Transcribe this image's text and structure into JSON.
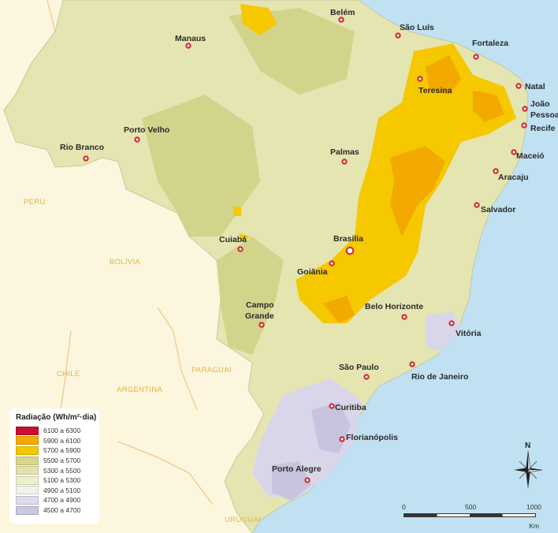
{
  "cities": [
    {
      "name": "Belém"
    },
    {
      "name": "São Luís"
    },
    {
      "name": "Manaus"
    },
    {
      "name": "Fortaleza"
    },
    {
      "name": "Teresina"
    },
    {
      "name": "Natal"
    },
    {
      "name": "João"
    },
    {
      "name": "Pessoa"
    },
    {
      "name": "Recife"
    },
    {
      "name": "Porto Velho"
    },
    {
      "name": "Rio Branco"
    },
    {
      "name": "Palmas"
    },
    {
      "name": "Maceió"
    },
    {
      "name": "Aracaju"
    },
    {
      "name": "Salvador"
    },
    {
      "name": "Cuiabá"
    },
    {
      "name": "Brasília"
    },
    {
      "name": "Goiânia"
    },
    {
      "name": "Campo"
    },
    {
      "name": "Grande"
    },
    {
      "name": "Belo Horizonte"
    },
    {
      "name": "Vitória"
    },
    {
      "name": "São Paulo"
    },
    {
      "name": "Rio de Janeiro"
    },
    {
      "name": "Curitiba"
    },
    {
      "name": "Florianópolis"
    },
    {
      "name": "Porto Alegre"
    }
  ],
  "countries": [
    "PERU",
    "BOLÍVIA",
    "CHILE",
    "PARAGUAI",
    "ARGENTINA",
    "URUGUAI"
  ],
  "legend": {
    "title": "Radiação (Wh/m²·dia)",
    "items": [
      {
        "label": "6100 a 6300",
        "color": "#c8102e"
      },
      {
        "label": "5900 a 6100",
        "color": "#f2a900"
      },
      {
        "label": "5700 a 5900",
        "color": "#f5c800"
      },
      {
        "label": "5500 a 5700",
        "color": "#d7d68a"
      },
      {
        "label": "5300 a 5500",
        "color": "#e2e2ac"
      },
      {
        "label": "5100 a 5300",
        "color": "#eef0cc"
      },
      {
        "label": "4900 a 5100",
        "color": "#f2f2ec"
      },
      {
        "label": "4700 a 4900",
        "color": "#dedcec"
      },
      {
        "label": "4500 a 4700",
        "color": "#c9c8e2"
      }
    ]
  },
  "scale": {
    "ticks": [
      "0",
      "500",
      "1000"
    ],
    "unit": "Km"
  },
  "compass": {
    "north": "N"
  },
  "colors": {
    "ocean": "#bfe1f2",
    "neighbors": "#fdf6de",
    "border": "#f0c98a"
  }
}
